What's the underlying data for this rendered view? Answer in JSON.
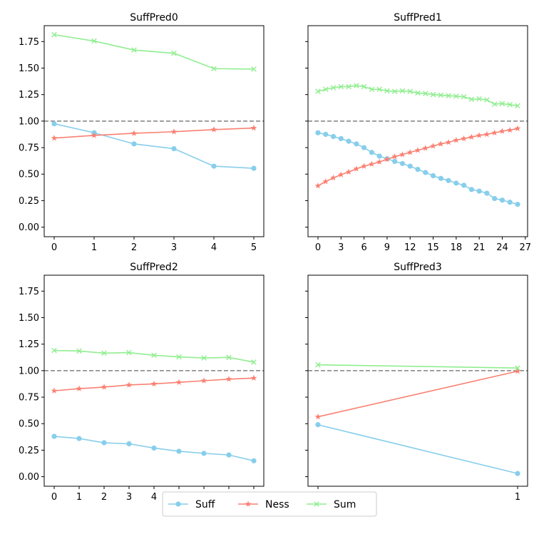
{
  "colors": {
    "Suff": "#87CEEB",
    "Ness": "#FA8072",
    "Sum": "#90EE90",
    "reference": "#808080"
  },
  "legend": {
    "placement": "bottom-center",
    "items": [
      {
        "label": "Suff",
        "marker": "circle"
      },
      {
        "label": "Ness",
        "marker": "star"
      },
      {
        "label": "Sum",
        "marker": "x"
      }
    ]
  },
  "chart_data": [
    {
      "type": "line",
      "title": "SuffPred0",
      "ylim": [
        -0.09,
        1.9
      ],
      "yticks": [
        "0.00",
        "0.25",
        "0.50",
        "0.75",
        "1.00",
        "1.25",
        "1.50",
        "1.75"
      ],
      "xlim": [
        -0.25,
        5.25
      ],
      "xticks": [
        "0",
        "1",
        "2",
        "3",
        "4",
        "5"
      ],
      "reference_line": 1.0,
      "series": [
        {
          "name": "Suff",
          "x": [
            0,
            1,
            2,
            3,
            4,
            5
          ],
          "values": [
            0.975,
            0.89,
            0.785,
            0.74,
            0.575,
            0.555
          ]
        },
        {
          "name": "Ness",
          "x": [
            0,
            1,
            2,
            3,
            4,
            5
          ],
          "values": [
            0.84,
            0.865,
            0.885,
            0.9,
            0.92,
            0.935
          ]
        },
        {
          "name": "Sum",
          "x": [
            0,
            1,
            2,
            3,
            4,
            5
          ],
          "values": [
            1.815,
            1.755,
            1.67,
            1.64,
            1.495,
            1.49
          ]
        }
      ]
    },
    {
      "type": "line",
      "title": "SuffPred1",
      "ylim": [
        -0.09,
        1.9
      ],
      "yticks": [
        "0.00",
        "0.25",
        "0.50",
        "0.75",
        "1.00",
        "1.25",
        "1.50",
        "1.75"
      ],
      "xlim": [
        -1.3,
        27.3
      ],
      "xticks": [
        "0",
        "3",
        "6",
        "9",
        "12",
        "15",
        "18",
        "21",
        "24",
        "27"
      ],
      "reference_line": 1.0,
      "series": [
        {
          "name": "Suff",
          "x": [
            0,
            1,
            2,
            3,
            4,
            5,
            6,
            7,
            8,
            9,
            10,
            11,
            12,
            13,
            14,
            15,
            16,
            17,
            18,
            19,
            20,
            21,
            22,
            23,
            24,
            25,
            26
          ],
          "values": [
            0.89,
            0.875,
            0.855,
            0.835,
            0.81,
            0.785,
            0.75,
            0.705,
            0.67,
            0.645,
            0.62,
            0.6,
            0.575,
            0.545,
            0.515,
            0.485,
            0.46,
            0.44,
            0.415,
            0.395,
            0.355,
            0.34,
            0.32,
            0.27,
            0.255,
            0.235,
            0.215
          ]
        },
        {
          "name": "Ness",
          "x": [
            0,
            1,
            2,
            3,
            4,
            5,
            6,
            7,
            8,
            9,
            10,
            11,
            12,
            13,
            14,
            15,
            16,
            17,
            18,
            19,
            20,
            21,
            22,
            23,
            24,
            25,
            26
          ],
          "values": [
            0.39,
            0.43,
            0.465,
            0.495,
            0.52,
            0.55,
            0.575,
            0.595,
            0.615,
            0.64,
            0.665,
            0.685,
            0.705,
            0.725,
            0.745,
            0.765,
            0.785,
            0.8,
            0.82,
            0.835,
            0.85,
            0.865,
            0.875,
            0.89,
            0.905,
            0.915,
            0.93
          ]
        },
        {
          "name": "Sum",
          "x": [
            0,
            1,
            2,
            3,
            4,
            5,
            6,
            7,
            8,
            9,
            10,
            11,
            12,
            13,
            14,
            15,
            16,
            17,
            18,
            19,
            20,
            21,
            22,
            23,
            24,
            25,
            26
          ],
          "values": [
            1.28,
            1.3,
            1.315,
            1.325,
            1.325,
            1.335,
            1.325,
            1.3,
            1.3,
            1.285,
            1.28,
            1.285,
            1.28,
            1.265,
            1.26,
            1.25,
            1.245,
            1.24,
            1.235,
            1.23,
            1.205,
            1.21,
            1.2,
            1.16,
            1.165,
            1.155,
            1.145
          ]
        }
      ]
    },
    {
      "type": "line",
      "title": "SuffPred2",
      "ylim": [
        -0.09,
        1.9
      ],
      "yticks": [
        "0.00",
        "0.25",
        "0.50",
        "0.75",
        "1.00",
        "1.25",
        "1.50",
        "1.75"
      ],
      "xlim": [
        -0.4,
        8.4
      ],
      "xticks": [
        "0",
        "1",
        "2",
        "3",
        "4",
        "5",
        "6",
        "7",
        "8"
      ],
      "reference_line": 1.0,
      "series": [
        {
          "name": "Suff",
          "x": [
            0,
            1,
            2,
            3,
            4,
            5,
            6,
            7,
            8
          ],
          "values": [
            0.38,
            0.36,
            0.32,
            0.31,
            0.27,
            0.24,
            0.22,
            0.205,
            0.15
          ]
        },
        {
          "name": "Ness",
          "x": [
            0,
            1,
            2,
            3,
            4,
            5,
            6,
            7,
            8
          ],
          "values": [
            0.81,
            0.83,
            0.845,
            0.865,
            0.875,
            0.89,
            0.905,
            0.92,
            0.93
          ]
        },
        {
          "name": "Sum",
          "x": [
            0,
            1,
            2,
            3,
            4,
            5,
            6,
            7,
            8
          ],
          "values": [
            1.19,
            1.185,
            1.165,
            1.17,
            1.145,
            1.13,
            1.12,
            1.125,
            1.08
          ]
        }
      ]
    },
    {
      "type": "line",
      "title": "SuffPred3",
      "ylim": [
        -0.09,
        1.9
      ],
      "yticks": [
        "0.00",
        "0.25",
        "0.50",
        "0.75",
        "1.00",
        "1.25",
        "1.50",
        "1.75"
      ],
      "xlim": [
        -0.05,
        1.05
      ],
      "xticks": [
        "0",
        "1"
      ],
      "reference_line": 1.0,
      "series": [
        {
          "name": "Suff",
          "x": [
            0,
            1
          ],
          "values": [
            0.49,
            0.03
          ]
        },
        {
          "name": "Ness",
          "x": [
            0,
            1
          ],
          "values": [
            0.565,
            0.995
          ]
        },
        {
          "name": "Sum",
          "x": [
            0,
            1
          ],
          "values": [
            1.055,
            1.025
          ]
        }
      ]
    }
  ]
}
